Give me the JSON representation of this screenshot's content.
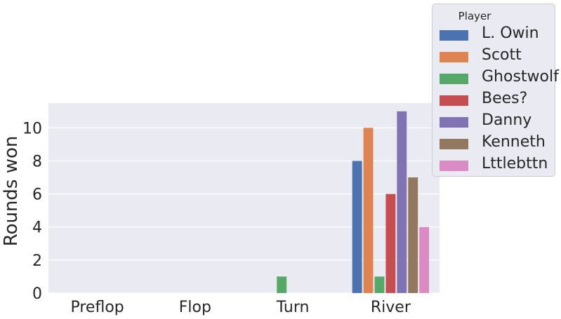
{
  "chart_data": {
    "type": "bar",
    "categories": [
      "Preflop",
      "Flop",
      "Turn",
      "River"
    ],
    "ylabel": "Rounds won",
    "xlabel": "",
    "ylim": [
      0,
      11.5
    ],
    "yticks": [
      0,
      2,
      4,
      6,
      8,
      10
    ],
    "grid": true,
    "legend_title": "Player",
    "legend_position": "top-right",
    "series": [
      {
        "name": "L. Owin",
        "color": "#4c72b0",
        "values": [
          0,
          0,
          0,
          8
        ]
      },
      {
        "name": "Scott",
        "color": "#dd8452",
        "values": [
          0,
          0,
          0,
          10
        ]
      },
      {
        "name": "Ghostwolf",
        "color": "#55a868",
        "values": [
          0,
          0,
          1,
          1
        ]
      },
      {
        "name": "Bees?",
        "color": "#c44e52",
        "values": [
          0,
          0,
          0,
          6
        ]
      },
      {
        "name": "Danny",
        "color": "#8172b3",
        "values": [
          0,
          0,
          0,
          11
        ]
      },
      {
        "name": "Kenneth",
        "color": "#937860",
        "values": [
          0,
          0,
          0,
          7
        ]
      },
      {
        "name": "Lttlebttn",
        "color": "#da8bc3",
        "values": [
          0,
          0,
          0,
          4
        ]
      }
    ]
  }
}
